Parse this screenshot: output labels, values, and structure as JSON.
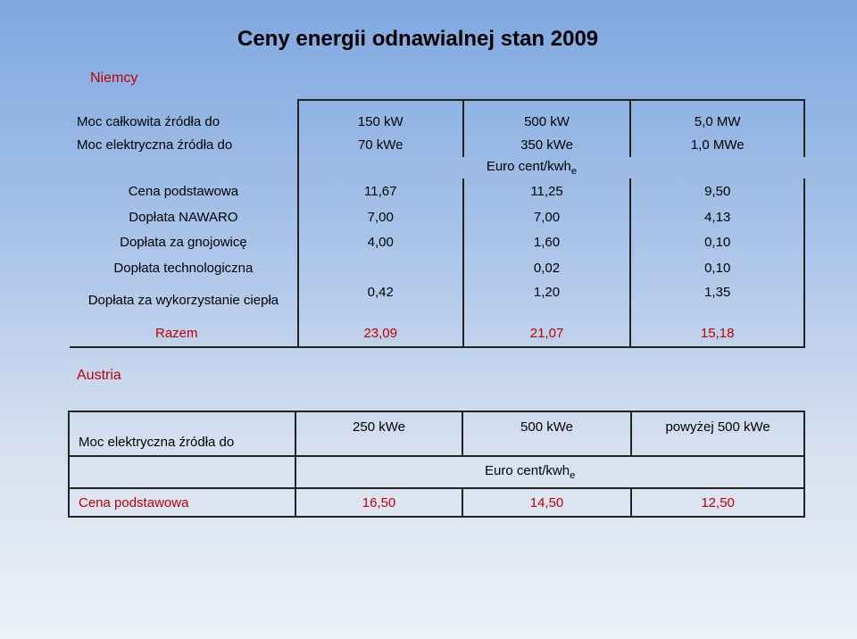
{
  "title": "Ceny energii odnawialnej stan 2009",
  "germany": {
    "label": "Niemcy",
    "rows": [
      {
        "label": "Moc całkowita źródła do",
        "values": [
          "150 kW",
          "500 kW",
          "5,0 MW"
        ]
      },
      {
        "label": "Moc elektryczna źródła do",
        "values": [
          "70 kWe",
          "350 kWe",
          "1,0 MWe"
        ]
      }
    ],
    "unit_main": "Euro cent/kwh",
    "unit_sub": "e",
    "price_rows": [
      {
        "label": "Cena podstawowa",
        "values": [
          "11,67",
          "11,25",
          "9,50"
        ]
      },
      {
        "label": "Dopłata NAWARO",
        "values": [
          "7,00",
          "7,00",
          "4,13"
        ]
      },
      {
        "label": "Dopłata za gnojowicę",
        "values": [
          "4,00",
          "1,60",
          "0,10"
        ]
      },
      {
        "label": "Dopłata technologiczna",
        "values": [
          "",
          "0,02",
          "0,10"
        ]
      },
      {
        "label": "Dopłata za wykorzystanie ciepła",
        "values": [
          "0,42",
          "1,20",
          "1,35"
        ]
      }
    ],
    "total": {
      "label": "Razem",
      "values": [
        "23,09",
        "21,07",
        "15,18"
      ]
    }
  },
  "austria": {
    "label": "Austria",
    "header_label": "Moc elektryczna źródła do",
    "headers": [
      "250 kWe",
      "500 kWe",
      "powyżej 500 kWe"
    ],
    "unit_main": "Euro cent/kwh",
    "unit_sub": "e",
    "price_row": {
      "label": "Cena podstawowa",
      "values": [
        "16,50",
        "14,50",
        "12,50"
      ]
    }
  }
}
